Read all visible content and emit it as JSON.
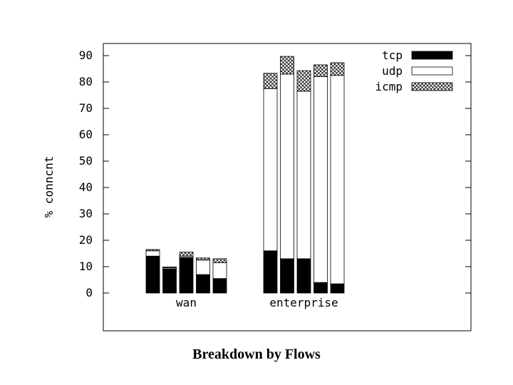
{
  "chart_data": {
    "type": "bar",
    "stacked": true,
    "title": "",
    "caption": "Breakdown by Flows",
    "xlabel": "",
    "ylabel": "% conncnt",
    "ylim": [
      -14,
      94
    ],
    "yticks": [
      0,
      10,
      20,
      30,
      40,
      50,
      60,
      70,
      80,
      90
    ],
    "legend_position": "top-right",
    "groups": [
      {
        "label": "wan",
        "bars": [
          {
            "tcp": 14,
            "udp": 2,
            "icmp": 0.5
          },
          {
            "tcp": 9.2,
            "udp": 0.4,
            "icmp": 0.3
          },
          {
            "tcp": 13.5,
            "udp": 0.5,
            "icmp": 1.5
          },
          {
            "tcp": 7,
            "udp": 5.5,
            "icmp": 0.8
          },
          {
            "tcp": 5.5,
            "udp": 6,
            "icmp": 1.5
          }
        ]
      },
      {
        "label": "enterprise",
        "bars": [
          {
            "tcp": 16,
            "udp": 61.5,
            "icmp": 5.8
          },
          {
            "tcp": 13,
            "udp": 70,
            "icmp": 6.7
          },
          {
            "tcp": 13,
            "udp": 63.5,
            "icmp": 7.8
          },
          {
            "tcp": 4,
            "udp": 78,
            "icmp": 4.5
          },
          {
            "tcp": 3.5,
            "udp": 79,
            "icmp": 4.8
          }
        ]
      }
    ],
    "series": [
      {
        "name": "tcp",
        "fill": "#000000"
      },
      {
        "name": "udp",
        "fill": "#ffffff"
      },
      {
        "name": "icmp",
        "fill": "crosshatch"
      }
    ]
  }
}
